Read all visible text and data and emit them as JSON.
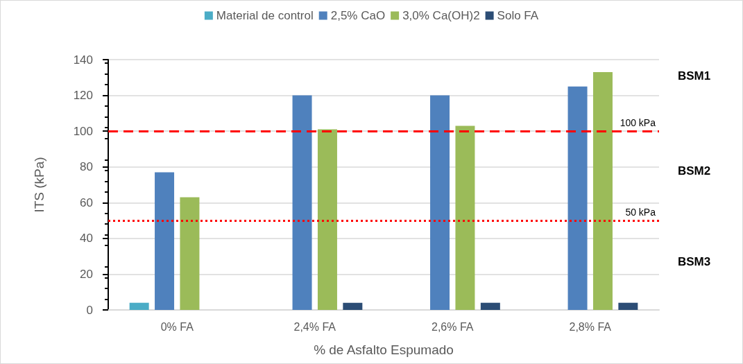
{
  "chart_data": {
    "type": "bar",
    "xlabel": "% de Asfalto Espumado",
    "ylabel": "ITS (kPa)",
    "categories": [
      "0% FA",
      "2,4% FA",
      "2,6% FA",
      "2,8% FA"
    ],
    "series": [
      {
        "name": "Material de control",
        "color": "#4bacc6",
        "values": [
          4,
          null,
          null,
          null
        ]
      },
      {
        "name": "2,5% CaO",
        "color": "#4f81bd",
        "values": [
          77,
          120,
          120,
          125
        ]
      },
      {
        "name": "3,0% Ca(OH)2",
        "color": "#9bbb59",
        "values": [
          63,
          101,
          103,
          133
        ]
      },
      {
        "name": "Solo FA",
        "color": "#2c4d75",
        "values": [
          null,
          4,
          4,
          4
        ]
      }
    ],
    "ylim": [
      0,
      140
    ],
    "yticks": [
      0,
      20,
      40,
      60,
      80,
      100,
      120,
      140
    ],
    "grid": "y",
    "legend": "top",
    "ref_lines": [
      {
        "axis": "y",
        "value": 100,
        "label": "100 kPa",
        "color": "#ff0000",
        "line_style": "dashed"
      },
      {
        "axis": "y",
        "value": 50,
        "label": "50 kPa",
        "color": "#ff0000",
        "line_style": "dotted"
      }
    ],
    "annotations": [
      "BSM1",
      "BSM2",
      "BSM3"
    ]
  }
}
